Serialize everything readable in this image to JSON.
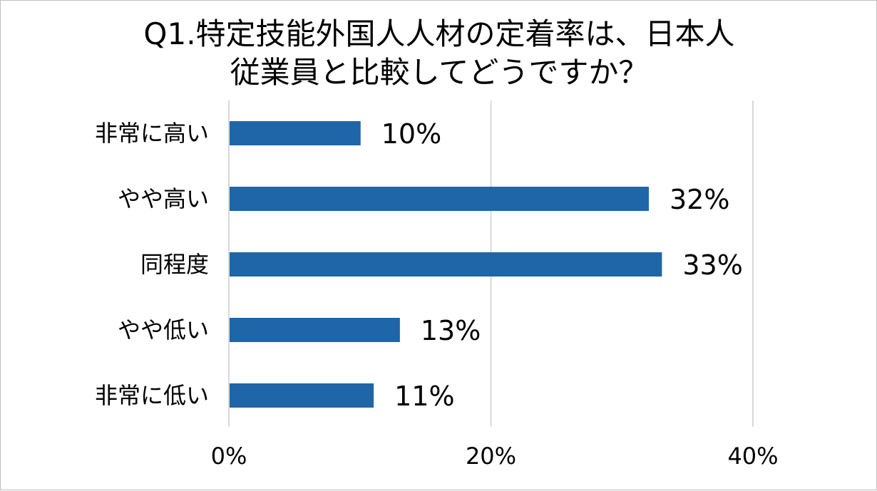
{
  "chart_data": {
    "type": "bar",
    "orientation": "horizontal",
    "title": "Q1.特定技能外国人人材の定着率は、日本人\n従業員と比較してどうですか？",
    "title_lines": [
      "Q1.特定技能外国人人材の定着率は、日本人",
      "従業員と比較してどうですか？"
    ],
    "categories": [
      "非常に高い",
      "やや高い",
      "同程度",
      "やや低い",
      "非常に低い"
    ],
    "values": [
      10,
      32,
      33,
      13,
      11
    ],
    "value_labels": [
      "10%",
      "32%",
      "33%",
      "13%",
      "11%"
    ],
    "xlim": [
      0,
      40
    ],
    "xticks": [
      0,
      20,
      40
    ],
    "xtick_labels": [
      "0%",
      "20%",
      "40%"
    ],
    "grid": true,
    "legend": "none",
    "bar_color": "#1f66a8",
    "grid_color": "#d9d9d9",
    "border_color": "#bfbfbf"
  }
}
